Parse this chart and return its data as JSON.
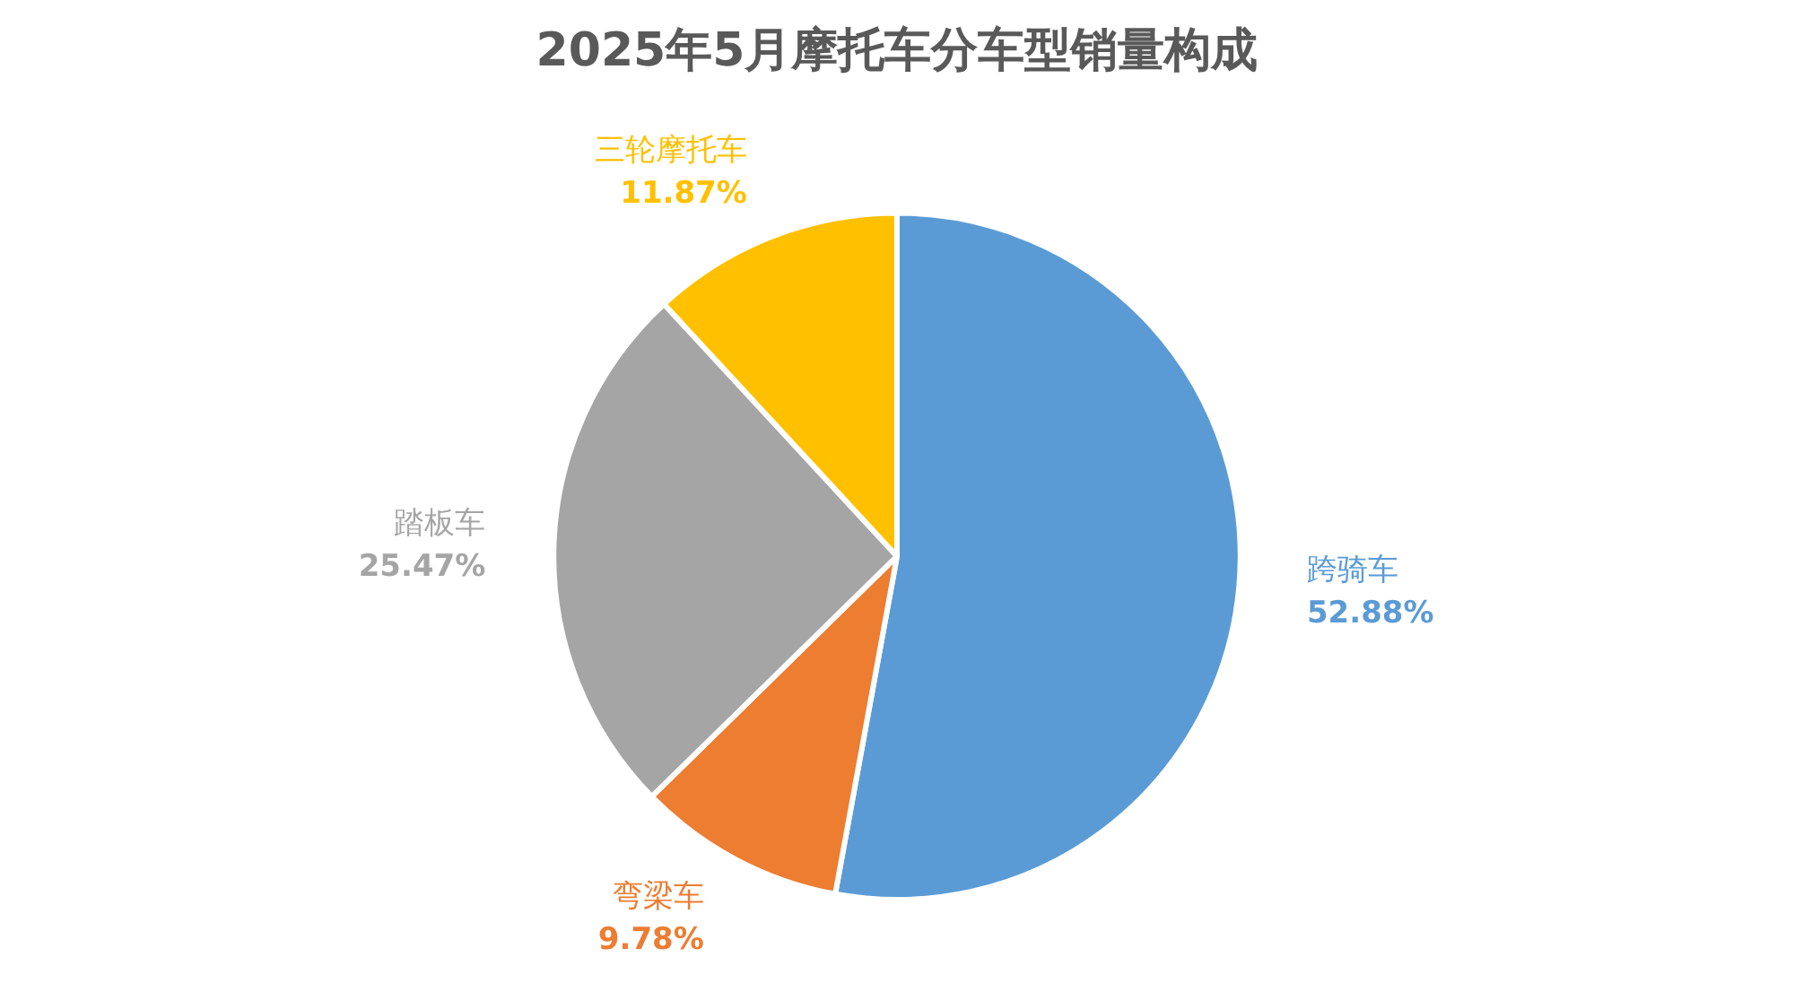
{
  "chart_data": {
    "type": "pie",
    "title": "2025年5月摩托车分车型销量构成",
    "categories": [
      "跨骑车",
      "弯梁车",
      "踏板车",
      "三轮摩托车"
    ],
    "values": [
      52.88,
      9.78,
      25.47,
      11.87
    ],
    "colors": [
      "#5b9bd5",
      "#ed7d31",
      "#a5a5a5",
      "#ffc000"
    ],
    "value_labels": [
      "52.88%",
      "9.78%",
      "25.47%",
      "11.87%"
    ]
  }
}
